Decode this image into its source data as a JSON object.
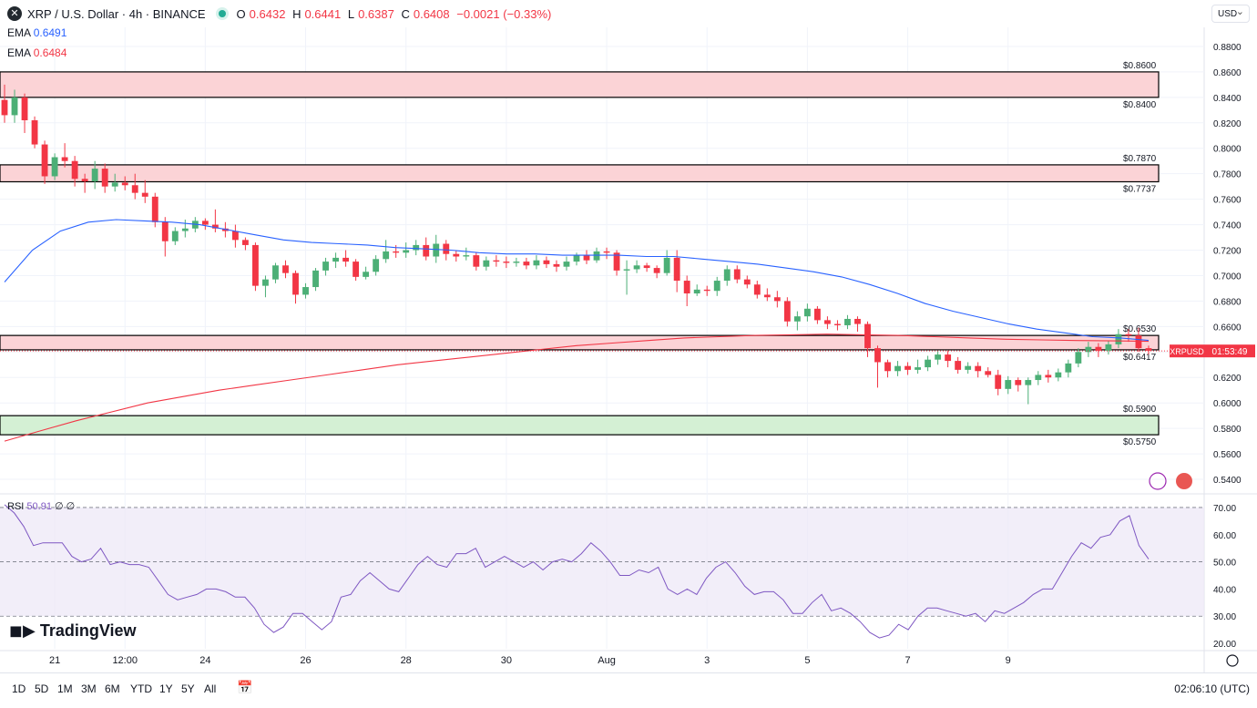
{
  "header": {
    "symbol_icon": "x-icon",
    "title": "XRP / U.S. Dollar · 4h · BINANCE",
    "ohlc": {
      "o_label": "O",
      "o": "0.6432",
      "h_label": "H",
      "h": "0.6441",
      "l_label": "L",
      "l": "0.6387",
      "c_label": "C",
      "c": "0.6408",
      "change": "−0.0021 (−0.33%)"
    },
    "ema1": {
      "label": "EMA",
      "value": "0.6491",
      "color": "#2962ff"
    },
    "ema2": {
      "label": "EMA",
      "value": "0.6484",
      "color": "#f23645"
    },
    "currency": "USD"
  },
  "colors": {
    "up": "#4caf76",
    "down": "#f23645",
    "ema_fast": "#2962ff",
    "ema_slow": "#f23645",
    "rsi": "#7e57c2",
    "resistance_fill": "#fbd3d6",
    "support_fill": "#d4f0d4"
  },
  "chart_data": {
    "type": "candlestick",
    "title": "XRP / U.S. Dollar · 4h · BINANCE",
    "ylim": [
      0.53,
      0.895
    ],
    "y_ticks": [
      "0.8800",
      "0.8600",
      "0.8400",
      "0.8200",
      "0.8000",
      "0.7800",
      "0.7600",
      "0.7400",
      "0.7200",
      "0.7000",
      "0.6800",
      "0.6600",
      "0.6400",
      "0.6200",
      "0.6000",
      "0.5800",
      "0.5600",
      "0.5400"
    ],
    "x_tick_labels": [
      "21",
      "12:00",
      "24",
      "26",
      "28",
      "30",
      "Aug",
      "3",
      "5",
      "7",
      "9"
    ],
    "x_tick_index": [
      5,
      12,
      20,
      30,
      40,
      50,
      60,
      70,
      80,
      90,
      100
    ],
    "zones": [
      {
        "kind": "resistance",
        "top": 0.86,
        "bottom": 0.84,
        "top_label": "$0.8600",
        "bottom_label": "$0.8400"
      },
      {
        "kind": "resistance",
        "top": 0.787,
        "bottom": 0.7737,
        "top_label": "$0.7870",
        "bottom_label": "$0.7737"
      },
      {
        "kind": "resistance",
        "top": 0.653,
        "bottom": 0.6417,
        "top_label": "$0.6530",
        "bottom_label": "$0.6417"
      },
      {
        "kind": "support",
        "top": 0.59,
        "bottom": 0.575,
        "top_label": "$0.5900",
        "bottom_label": "$0.5750"
      }
    ],
    "last_price": {
      "symbol": "XRPUSD",
      "value": "0.6408",
      "countdown": "01:53:49",
      "price": 0.6408
    },
    "candles": [
      [
        0.838,
        0.826,
        0.85,
        0.82
      ],
      [
        0.826,
        0.84,
        0.846,
        0.82
      ],
      [
        0.84,
        0.822,
        0.843,
        0.812
      ],
      [
        0.822,
        0.803,
        0.825,
        0.8
      ],
      [
        0.803,
        0.778,
        0.806,
        0.772
      ],
      [
        0.778,
        0.793,
        0.796,
        0.775
      ],
      [
        0.793,
        0.79,
        0.804,
        0.785
      ],
      [
        0.79,
        0.776,
        0.794,
        0.77
      ],
      [
        0.776,
        0.774,
        0.78,
        0.765
      ],
      [
        0.774,
        0.784,
        0.79,
        0.768
      ],
      [
        0.784,
        0.77,
        0.788,
        0.765
      ],
      [
        0.77,
        0.773,
        0.78,
        0.766
      ],
      [
        0.773,
        0.771,
        0.778,
        0.767
      ],
      [
        0.771,
        0.765,
        0.78,
        0.76
      ],
      [
        0.765,
        0.762,
        0.775,
        0.757
      ],
      [
        0.762,
        0.742,
        0.765,
        0.738
      ],
      [
        0.742,
        0.727,
        0.746,
        0.715
      ],
      [
        0.727,
        0.735,
        0.738,
        0.724
      ],
      [
        0.735,
        0.737,
        0.744,
        0.73
      ],
      [
        0.737,
        0.743,
        0.746,
        0.734
      ],
      [
        0.743,
        0.74,
        0.745,
        0.736
      ],
      [
        0.74,
        0.737,
        0.752,
        0.734
      ],
      [
        0.737,
        0.735,
        0.742,
        0.73
      ],
      [
        0.735,
        0.728,
        0.74,
        0.722
      ],
      [
        0.728,
        0.724,
        0.73,
        0.72
      ],
      [
        0.724,
        0.692,
        0.726,
        0.688
      ],
      [
        0.692,
        0.697,
        0.7,
        0.683
      ],
      [
        0.697,
        0.708,
        0.71,
        0.694
      ],
      [
        0.708,
        0.702,
        0.712,
        0.698
      ],
      [
        0.702,
        0.685,
        0.704,
        0.678
      ],
      [
        0.685,
        0.691,
        0.694,
        0.682
      ],
      [
        0.691,
        0.704,
        0.706,
        0.688
      ],
      [
        0.704,
        0.711,
        0.714,
        0.7
      ],
      [
        0.711,
        0.714,
        0.718,
        0.706
      ],
      [
        0.714,
        0.711,
        0.72,
        0.707
      ],
      [
        0.711,
        0.699,
        0.713,
        0.696
      ],
      [
        0.699,
        0.703,
        0.707,
        0.697
      ],
      [
        0.703,
        0.713,
        0.716,
        0.7
      ],
      [
        0.713,
        0.719,
        0.728,
        0.71
      ],
      [
        0.719,
        0.718,
        0.724,
        0.714
      ],
      [
        0.718,
        0.72,
        0.726,
        0.714
      ],
      [
        0.72,
        0.724,
        0.728,
        0.716
      ],
      [
        0.724,
        0.715,
        0.73,
        0.712
      ],
      [
        0.715,
        0.725,
        0.732,
        0.71
      ],
      [
        0.725,
        0.717,
        0.728,
        0.712
      ],
      [
        0.717,
        0.715,
        0.72,
        0.711
      ],
      [
        0.715,
        0.716,
        0.722,
        0.712
      ],
      [
        0.716,
        0.707,
        0.718,
        0.704
      ],
      [
        0.707,
        0.712,
        0.715,
        0.704
      ],
      [
        0.712,
        0.711,
        0.716,
        0.707
      ],
      [
        0.711,
        0.71,
        0.715,
        0.706
      ],
      [
        0.71,
        0.711,
        0.714,
        0.707
      ],
      [
        0.711,
        0.708,
        0.714,
        0.705
      ],
      [
        0.708,
        0.712,
        0.716,
        0.705
      ],
      [
        0.712,
        0.709,
        0.715,
        0.706
      ],
      [
        0.709,
        0.707,
        0.712,
        0.703
      ],
      [
        0.707,
        0.711,
        0.715,
        0.704
      ],
      [
        0.711,
        0.716,
        0.718,
        0.708
      ],
      [
        0.716,
        0.712,
        0.72,
        0.709
      ],
      [
        0.712,
        0.719,
        0.722,
        0.71
      ],
      [
        0.719,
        0.718,
        0.722,
        0.713
      ],
      [
        0.718,
        0.704,
        0.72,
        0.7
      ],
      [
        0.704,
        0.705,
        0.712,
        0.685
      ],
      [
        0.705,
        0.708,
        0.712,
        0.702
      ],
      [
        0.708,
        0.706,
        0.71,
        0.703
      ],
      [
        0.706,
        0.702,
        0.708,
        0.698
      ],
      [
        0.702,
        0.714,
        0.72,
        0.7
      ],
      [
        0.714,
        0.696,
        0.72,
        0.687
      ],
      [
        0.696,
        0.686,
        0.7,
        0.676
      ],
      [
        0.686,
        0.689,
        0.693,
        0.684
      ],
      [
        0.689,
        0.688,
        0.692,
        0.684
      ],
      [
        0.688,
        0.696,
        0.699,
        0.684
      ],
      [
        0.696,
        0.705,
        0.708,
        0.692
      ],
      [
        0.705,
        0.697,
        0.708,
        0.694
      ],
      [
        0.697,
        0.693,
        0.7,
        0.69
      ],
      [
        0.693,
        0.685,
        0.696,
        0.682
      ],
      [
        0.685,
        0.683,
        0.69,
        0.68
      ],
      [
        0.683,
        0.68,
        0.688,
        0.675
      ],
      [
        0.68,
        0.664,
        0.683,
        0.66
      ],
      [
        0.664,
        0.668,
        0.672,
        0.657
      ],
      [
        0.668,
        0.674,
        0.678,
        0.664
      ],
      [
        0.674,
        0.665,
        0.676,
        0.662
      ],
      [
        0.665,
        0.662,
        0.668,
        0.658
      ],
      [
        0.662,
        0.661,
        0.665,
        0.657
      ],
      [
        0.661,
        0.666,
        0.669,
        0.658
      ],
      [
        0.666,
        0.662,
        0.668,
        0.656
      ],
      [
        0.662,
        0.643,
        0.664,
        0.636
      ],
      [
        0.643,
        0.632,
        0.645,
        0.612
      ],
      [
        0.632,
        0.625,
        0.634,
        0.62
      ],
      [
        0.625,
        0.629,
        0.633,
        0.621
      ],
      [
        0.629,
        0.626,
        0.632,
        0.622
      ],
      [
        0.626,
        0.628,
        0.634,
        0.623
      ],
      [
        0.628,
        0.634,
        0.637,
        0.625
      ],
      [
        0.634,
        0.638,
        0.641,
        0.63
      ],
      [
        0.638,
        0.633,
        0.641,
        0.628
      ],
      [
        0.633,
        0.626,
        0.636,
        0.623
      ],
      [
        0.626,
        0.629,
        0.632,
        0.623
      ],
      [
        0.629,
        0.625,
        0.632,
        0.62
      ],
      [
        0.625,
        0.622,
        0.628,
        0.62
      ],
      [
        0.622,
        0.611,
        0.626,
        0.606
      ],
      [
        0.611,
        0.618,
        0.621,
        0.607
      ],
      [
        0.618,
        0.614,
        0.62,
        0.609
      ],
      [
        0.614,
        0.618,
        0.62,
        0.599
      ],
      [
        0.618,
        0.622,
        0.625,
        0.614
      ],
      [
        0.622,
        0.62,
        0.626,
        0.616
      ],
      [
        0.62,
        0.624,
        0.627,
        0.617
      ],
      [
        0.624,
        0.631,
        0.634,
        0.62
      ],
      [
        0.631,
        0.64,
        0.643,
        0.628
      ],
      [
        0.64,
        0.644,
        0.648,
        0.636
      ],
      [
        0.644,
        0.641,
        0.647,
        0.636
      ],
      [
        0.641,
        0.646,
        0.649,
        0.638
      ],
      [
        0.646,
        0.654,
        0.658,
        0.643
      ],
      [
        0.654,
        0.653,
        0.658,
        0.648
      ],
      [
        0.653,
        0.643,
        0.659,
        0.64
      ],
      [
        0.643,
        0.641,
        0.645,
        0.638
      ]
    ],
    "ema_fast": [
      0.695,
      0.72,
      0.735,
      0.742,
      0.744,
      0.743,
      0.742,
      0.74,
      0.736,
      0.732,
      0.728,
      0.726,
      0.725,
      0.724,
      0.722,
      0.721,
      0.72,
      0.718,
      0.717,
      0.717,
      0.716,
      0.716,
      0.716,
      0.715,
      0.715,
      0.713,
      0.711,
      0.709,
      0.706,
      0.703,
      0.699,
      0.693,
      0.686,
      0.678,
      0.672,
      0.667,
      0.662,
      0.658,
      0.655,
      0.652,
      0.651,
      0.6491
    ],
    "ema_slow": [
      0.57,
      0.578,
      0.586,
      0.593,
      0.6,
      0.605,
      0.61,
      0.614,
      0.618,
      0.622,
      0.626,
      0.63,
      0.633,
      0.636,
      0.639,
      0.642,
      0.645,
      0.647,
      0.649,
      0.651,
      0.652,
      0.653,
      0.6535,
      0.654,
      0.6535,
      0.653,
      0.652,
      0.651,
      0.65,
      0.6495,
      0.649,
      0.6487,
      0.6484
    ],
    "rsi": {
      "label": "RSI",
      "value": "50.91",
      "extra": "∅ ∅",
      "ylim": [
        18,
        74
      ],
      "y_ticks": [
        "70.00",
        "60.00",
        "50.00",
        "40.00",
        "30.00",
        "20.00"
      ],
      "levels": [
        70,
        50,
        30
      ],
      "values": [
        71,
        68,
        63,
        56,
        57,
        57,
        57,
        52,
        50,
        51,
        55,
        49,
        50,
        49,
        49,
        48,
        43,
        38,
        36,
        37,
        38,
        40,
        40,
        39,
        37,
        37,
        33,
        27,
        24,
        26,
        31,
        31,
        28,
        25,
        28,
        37,
        38,
        43,
        46,
        43,
        40,
        39,
        44,
        49,
        52,
        49,
        48,
        53,
        53,
        55,
        48,
        50,
        52,
        50,
        48,
        50,
        47,
        50,
        51,
        50,
        53,
        57,
        54,
        50,
        45,
        45,
        47,
        46,
        48,
        40,
        38,
        40,
        38,
        44,
        48,
        50,
        46,
        41,
        38,
        39,
        39,
        36,
        31,
        31,
        35,
        38,
        32,
        33,
        31,
        28,
        24,
        22,
        23,
        27,
        25,
        30,
        33,
        33,
        32,
        31,
        30,
        31,
        28,
        32,
        31,
        33,
        35,
        38,
        40,
        40,
        46,
        52,
        57,
        55,
        59,
        60,
        65,
        67,
        56,
        51
      ]
    }
  },
  "bottom_bar": {
    "ranges": [
      "1D",
      "5D",
      "1M",
      "3M",
      "6M",
      "YTD",
      "1Y",
      "5Y",
      "All"
    ],
    "clock": "02:06:10 (UTC)",
    "logo": "TradingView"
  }
}
